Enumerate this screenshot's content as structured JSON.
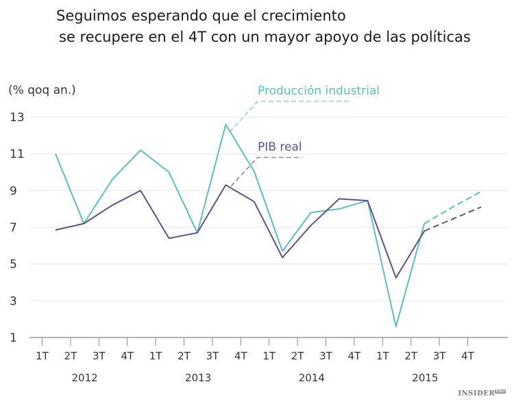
{
  "chart_data": {
    "type": "line",
    "title": [
      "Seguimos esperando que el crecimiento",
      "se recupere en el 4T con un mayor apoyo de las políticas"
    ],
    "ylabel": "(% qoq an.)",
    "ylim": [
      1,
      13
    ],
    "yticks": [
      1,
      3,
      5,
      7,
      9,
      11,
      13
    ],
    "grid": true,
    "quarter_labels": [
      "1T",
      "2T",
      "3T",
      "4T",
      "1T",
      "2T",
      "3T",
      "4T",
      "1T",
      "2T",
      "3T",
      "4T",
      "1T",
      "2T",
      "3T",
      "4T"
    ],
    "years": [
      "2012",
      "2013",
      "2014",
      "2015"
    ],
    "forecast_from_index": 13,
    "series": [
      {
        "name": "Producción industrial",
        "color": "#5bbcc2",
        "values": [
          11.0,
          7.2,
          9.6,
          11.2,
          10.0,
          6.7,
          12.6,
          10.05,
          5.7,
          7.8,
          8.0,
          8.45,
          1.6,
          7.2,
          8.1,
          8.95
        ]
      },
      {
        "name": "PIB real",
        "color": "#5e4f8a",
        "values": [
          6.85,
          7.2,
          8.2,
          9.0,
          6.4,
          6.7,
          9.3,
          8.4,
          5.35,
          7.1,
          8.55,
          8.45,
          4.25,
          6.8,
          7.45,
          8.1
        ]
      }
    ]
  },
  "branding": {
    "logo": "INSIDER PRO"
  }
}
